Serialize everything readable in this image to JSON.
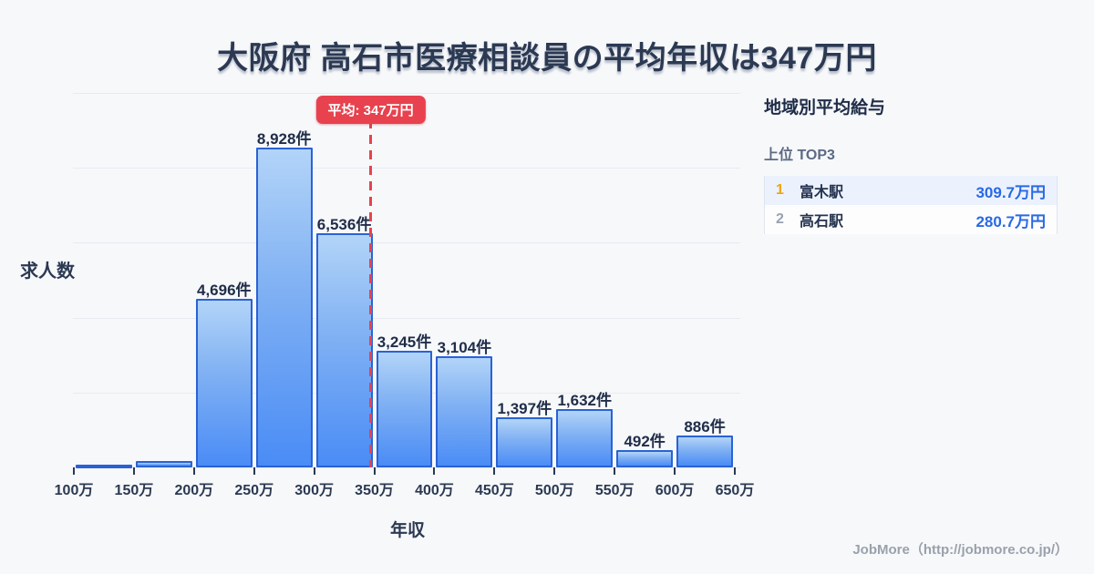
{
  "title": "大阪府 高石市医療相談員の平均年収は347万円",
  "colors": {
    "background": "#f7f8fa",
    "bar_gradient_top": "#b2d4f8",
    "bar_gradient_bottom": "#4a8cf6",
    "bar_border": "#2a62d6",
    "gridline": "#e7ebf1",
    "text_dark_navy": "#2b3952",
    "average_red": "#e8424e",
    "salary_value_blue": "#2969e3",
    "rank1_gold": "#f0a50c",
    "rank2_gray": "#98a2b0"
  },
  "chart_data": {
    "type": "bar",
    "title": "大阪府 高石市医療相談員の平均年収は347万円",
    "xlabel": "年収",
    "ylabel": "求人数",
    "x_ticks": [
      "100万",
      "150万",
      "200万",
      "250万",
      "300万",
      "350万",
      "400万",
      "450万",
      "500万",
      "550万",
      "600万",
      "650万"
    ],
    "bins": [
      {
        "range": "100万-150万",
        "value": 80,
        "label": ""
      },
      {
        "range": "150万-200万",
        "value": 170,
        "label": ""
      },
      {
        "range": "200万-250万",
        "value": 4696,
        "label": "4,696件"
      },
      {
        "range": "250万-300万",
        "value": 8928,
        "label": "8,928件"
      },
      {
        "range": "300万-350万",
        "value": 6536,
        "label": "6,536件"
      },
      {
        "range": "350万-400万",
        "value": 3245,
        "label": "3,245件"
      },
      {
        "range": "400万-450万",
        "value": 3104,
        "label": "3,104件"
      },
      {
        "range": "450万-500万",
        "value": 1397,
        "label": "1,397件"
      },
      {
        "range": "500万-550万",
        "value": 1632,
        "label": "1,632件"
      },
      {
        "range": "550万-600万",
        "value": 492,
        "label": "492件"
      },
      {
        "range": "600万-650万",
        "value": 886,
        "label": "886件"
      }
    ],
    "average": {
      "value": 347,
      "label": "平均: 347万円"
    },
    "ylim": [
      0,
      10450
    ],
    "grid": "horizontal",
    "legend": "none"
  },
  "sidebar": {
    "header": "地域別平均給与",
    "subheader": "上位 TOP3",
    "rows": [
      {
        "rank": "1",
        "station": "富木駅",
        "value": "309.7万円"
      },
      {
        "rank": "2",
        "station": "高石駅",
        "value": "280.7万円"
      }
    ]
  },
  "footer": {
    "credit": "JobMore（http://jobmore.co.jp/）"
  }
}
